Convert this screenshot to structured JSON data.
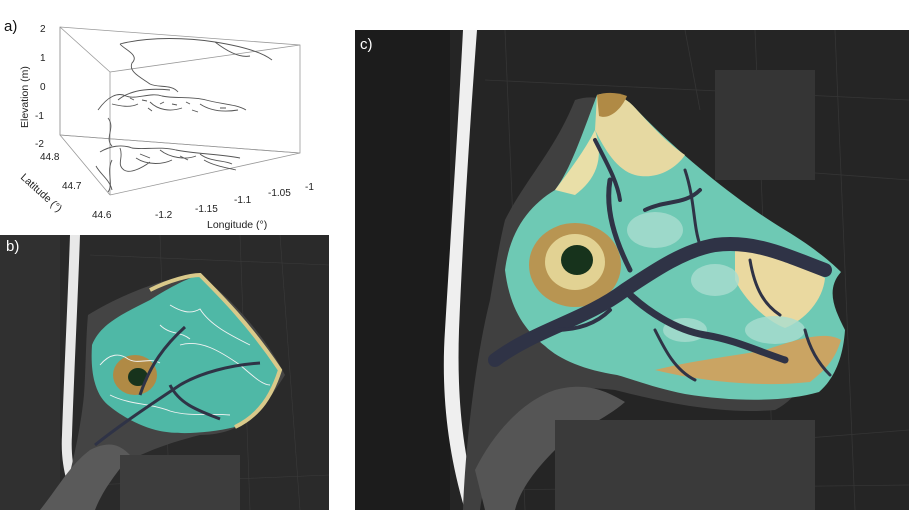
{
  "panels": {
    "a": {
      "label": "a)",
      "z_axis": {
        "title": "Elevation (m)",
        "ticks": [
          "2",
          "1",
          "0",
          "-1",
          "-2"
        ]
      },
      "y_axis": {
        "title": "Latitude (°)",
        "ticks": [
          "44.8",
          "44.7",
          "44.6"
        ]
      },
      "x_axis": {
        "title": "Longitude (°)",
        "ticks": [
          "-1.2",
          "-1.15",
          "-1.1",
          "-1.05",
          "-1"
        ]
      }
    },
    "b": {
      "label": "b)"
    },
    "c": {
      "label": "c)"
    }
  },
  "colors": {
    "water": "#3b3b3b",
    "land": "#262626",
    "beach": "#efefef",
    "flat_low": "#4fb8a6",
    "flat_mid": "#8fd4c0",
    "flat_high": "#d9c98a",
    "ridge": "#b08a45",
    "channel": "#2f3346",
    "deep": "#17331c"
  }
}
